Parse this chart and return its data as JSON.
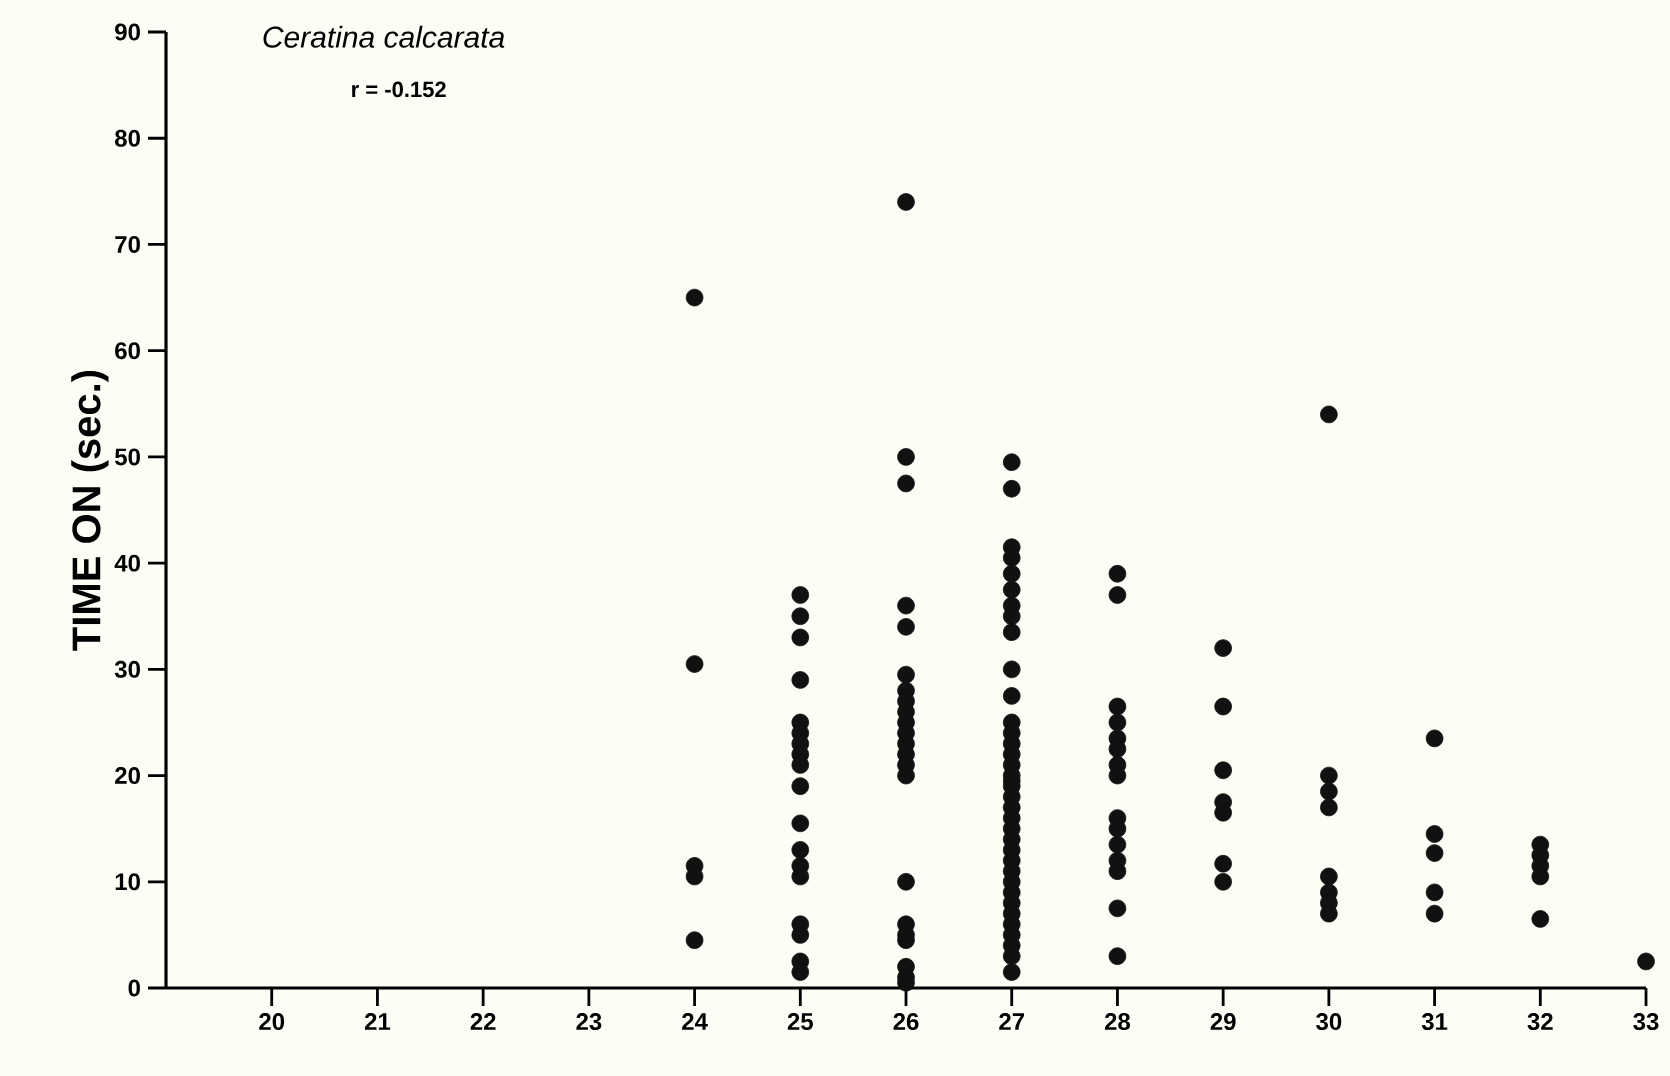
{
  "chart_data": {
    "type": "scatter",
    "title": "Ceratina calcarata",
    "ylabel": "TIME ON (sec.)",
    "annotations": [
      "r = -0.152"
    ],
    "xlim": [
      19,
      33
    ],
    "xticks": [
      20,
      21,
      22,
      23,
      24,
      25,
      26,
      27,
      28,
      29,
      30,
      31,
      32,
      33
    ],
    "ylim": [
      0,
      90
    ],
    "yticks": [
      0,
      10,
      20,
      30,
      40,
      50,
      60,
      70,
      80,
      90
    ],
    "grid": false,
    "legend": false,
    "marker": "circle",
    "series": [
      {
        "color": "#111111",
        "x": [
          24,
          24,
          24,
          24,
          24,
          25,
          25,
          25,
          25,
          25,
          25,
          25,
          25,
          25,
          25,
          25,
          25,
          25,
          25,
          25,
          25,
          25,
          25,
          26,
          26,
          26,
          26,
          26,
          26,
          26,
          26,
          26,
          26,
          26,
          26,
          26,
          26,
          26,
          26,
          26,
          26,
          26,
          26,
          26,
          26,
          27,
          27,
          27,
          27,
          27,
          27,
          27,
          27,
          27,
          27,
          27,
          27,
          27,
          27,
          27,
          27,
          27,
          27,
          27,
          27,
          27,
          27,
          27,
          27,
          27,
          27,
          27,
          27,
          27,
          27,
          27,
          27,
          27,
          27,
          27,
          27,
          28,
          28,
          28,
          28,
          28,
          28,
          28,
          28,
          28,
          28,
          28,
          28,
          28,
          28,
          28,
          29,
          29,
          29,
          29,
          29,
          29,
          29,
          30,
          30,
          30,
          30,
          30,
          30,
          30,
          30,
          31,
          31,
          31,
          31,
          31,
          32,
          32,
          32,
          32,
          32,
          33
        ],
        "values": [
          65,
          30.5,
          11.5,
          10.5,
          4.5,
          37,
          35,
          33,
          29,
          25,
          24,
          23,
          22,
          21,
          19,
          15.5,
          13,
          11.5,
          10.5,
          6,
          5,
          2.5,
          1.5,
          74,
          50,
          47.5,
          36,
          34,
          29.5,
          28,
          27,
          26,
          25,
          24,
          23,
          22,
          21,
          20,
          10,
          6,
          5,
          4.5,
          2,
          1,
          0.5,
          49.5,
          47,
          41.5,
          40.5,
          39,
          37.5,
          36,
          35,
          33.5,
          30,
          27.5,
          25,
          24,
          23,
          22,
          21,
          20,
          19.5,
          19,
          18,
          17,
          16,
          15,
          14,
          13,
          12,
          11,
          10,
          9,
          8,
          7,
          6,
          5,
          4,
          3,
          1.5,
          39,
          37,
          26.5,
          25,
          23.5,
          22.5,
          21,
          20,
          16,
          15,
          13.5,
          12,
          11,
          7.5,
          3,
          32,
          26.5,
          20.5,
          17.5,
          16.5,
          11.7,
          10,
          54,
          20,
          18.5,
          17,
          10.5,
          9,
          8,
          7,
          23.5,
          14.5,
          12.7,
          9,
          7,
          13.5,
          12.5,
          11.5,
          10.5,
          6.5,
          2.5
        ]
      }
    ]
  }
}
